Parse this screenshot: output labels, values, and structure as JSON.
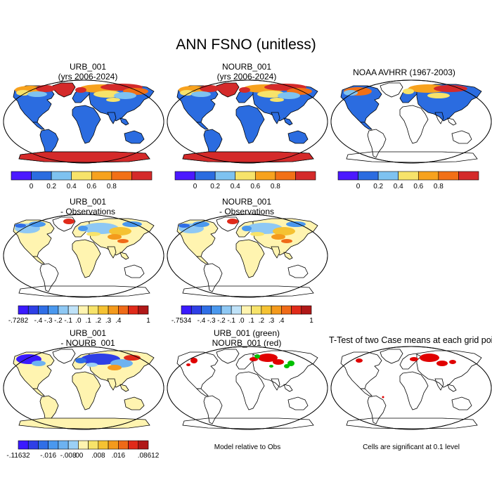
{
  "title": "ANN FSNO (unitless)",
  "panels": [
    {
      "id": "urb",
      "title1": "URB_001",
      "title2": "(yrs 2006-2024)"
    },
    {
      "id": "nourb",
      "title1": "NOURB_001",
      "title2": "(yrs 2006-2024)"
    },
    {
      "id": "obs",
      "title1": "NOAA AVHRR (1967-2003)",
      "title2": ""
    },
    {
      "id": "urb-obs",
      "title1": "URB_001",
      "title2": "- Observations"
    },
    {
      "id": "nourb-obs",
      "title1": "NOURB_001",
      "title2": "- Observations"
    },
    {
      "id": "urb-nourb",
      "title1": "URB_001",
      "title2": "- NOURB_001"
    },
    {
      "id": "green-red",
      "title1": "URB_001 (green)",
      "title2": "NOURB_001 (red)"
    },
    {
      "id": "ttest",
      "title1": "T-Test of two Case means at each grid point",
      "title2": ""
    }
  ],
  "colorbar_abs": {
    "colors": [
      "#4b19ff",
      "#2b6ce0",
      "#7ec2f0",
      "#f7e36a",
      "#f7a21e",
      "#f27016",
      "#d42a2a"
    ],
    "labels": [
      "0",
      "0.2",
      "0.4",
      "0.6",
      "0.8"
    ]
  },
  "colorbar_diff1": {
    "colors": [
      "#3a1aff",
      "#2e3fe6",
      "#2f6ee6",
      "#4a98ee",
      "#8ec8f4",
      "#bfe2f8",
      "#fff4b0",
      "#f7e36a",
      "#f5c232",
      "#f49a1c",
      "#ef6a18",
      "#e02a1a",
      "#b01818"
    ],
    "labels": [
      "-.7282",
      "-.4",
      "-.3",
      "-.2",
      "-.1",
      ".0",
      ".1",
      ".2",
      ".3",
      ".4",
      "1"
    ]
  },
  "colorbar_diff2": {
    "labels": [
      "-.7534",
      "-.4",
      "-.3",
      "-.2",
      "-.1",
      ".0",
      ".1",
      ".2",
      ".3",
      ".4",
      "1"
    ]
  },
  "colorbar_diff3": {
    "colors": [
      "#3a1aff",
      "#2e3fe6",
      "#2f6ee6",
      "#4a98ee",
      "#6db2f0",
      "#9bd0f6",
      "#fff4b0",
      "#f7e36a",
      "#f5c232",
      "#f49a1c",
      "#ef6a18",
      "#e02a1a",
      "#b01818"
    ],
    "labels": [
      "-.11632",
      "-.016",
      "-.008",
      ".00",
      ".008",
      ".016",
      ".08612"
    ]
  },
  "notes": {
    "model_rel": "Model relative to Obs",
    "signif": "Cells are significant at 0.1 level"
  }
}
